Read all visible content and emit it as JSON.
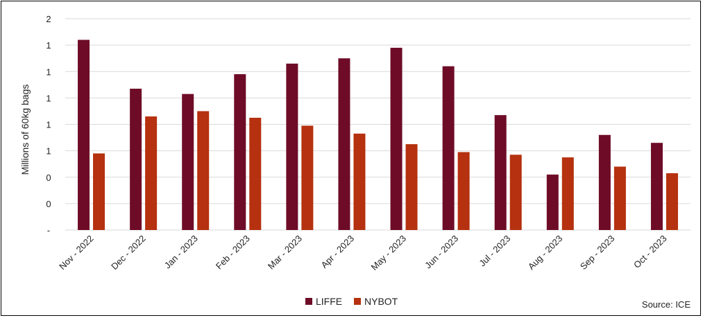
{
  "chart_data": {
    "type": "bar",
    "ylabel": "Millions of 60kg bags",
    "y_tick_labels": [
      "-",
      "0",
      "0",
      "1",
      "1",
      "1",
      "1",
      "1",
      "2"
    ],
    "ylim": [
      0,
      1.6
    ],
    "categories": [
      "Nov - 2022",
      "Dec - 2022",
      "Jan - 2023",
      "Feb - 2023",
      "Mar - 2023",
      "Apr - 2023",
      "May - 2023",
      "Jun - 2023",
      "Jul - 2023",
      "Aug - 2023",
      "Sep - 2023",
      "Oct - 2023"
    ],
    "series": [
      {
        "name": "LIFFE",
        "color": "#6e0c27",
        "values": [
          1.44,
          1.07,
          1.03,
          1.18,
          1.26,
          1.3,
          1.38,
          1.24,
          0.87,
          0.42,
          0.72,
          0.66
        ]
      },
      {
        "name": "NYBOT",
        "color": "#b5310f",
        "values": [
          0.58,
          0.86,
          0.9,
          0.85,
          0.79,
          0.73,
          0.65,
          0.59,
          0.57,
          0.55,
          0.48,
          0.43
        ]
      }
    ],
    "legend": "bottom-center",
    "grid": true,
    "source": "Source: ICE"
  }
}
